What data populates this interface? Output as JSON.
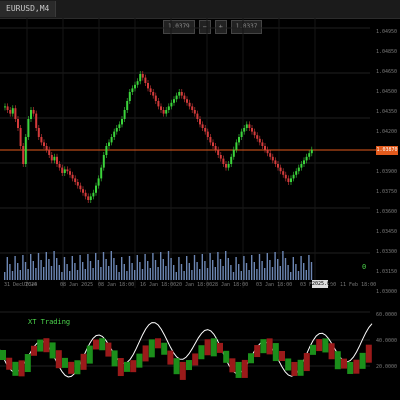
{
  "window": {
    "tab": "EURUSD,M4"
  },
  "trade_panel": {
    "sell_price": "1.0379",
    "lot": "1.0337",
    "minus_icon": "minus-icon",
    "plus_icon": "plus-icon"
  },
  "price_axis": [
    "1.04950",
    "1.04850",
    "1.04650",
    "1.04500",
    "1.04350",
    "1.04200",
    "1.04050",
    "1.03900",
    "1.03750",
    "1.03600",
    "1.03450",
    "1.03300",
    "1.03150",
    "1.03000"
  ],
  "current_price": "1.03870",
  "time_axis": [
    "31 Dec 2024",
    "UTC+0",
    "08 Jan 2025",
    "08 Jan 18:00",
    "16 Jan 18:00",
    "20 Jan 18:00",
    "28 Jan 18:00",
    "03 Jan 18:00",
    "03 Feb 18:00",
    "11 Feb 18:00"
  ],
  "time_marker": "2025.02.06",
  "volume_label": "0",
  "oscillator": {
    "label": "XT Trading",
    "levels": [
      "60.0000",
      "40.0000",
      "20.0000"
    ]
  },
  "colors": {
    "bull": "#3bd43b",
    "bear": "#d43b3b",
    "current": "#e25a1c",
    "volume": "#6c86b3"
  }
}
